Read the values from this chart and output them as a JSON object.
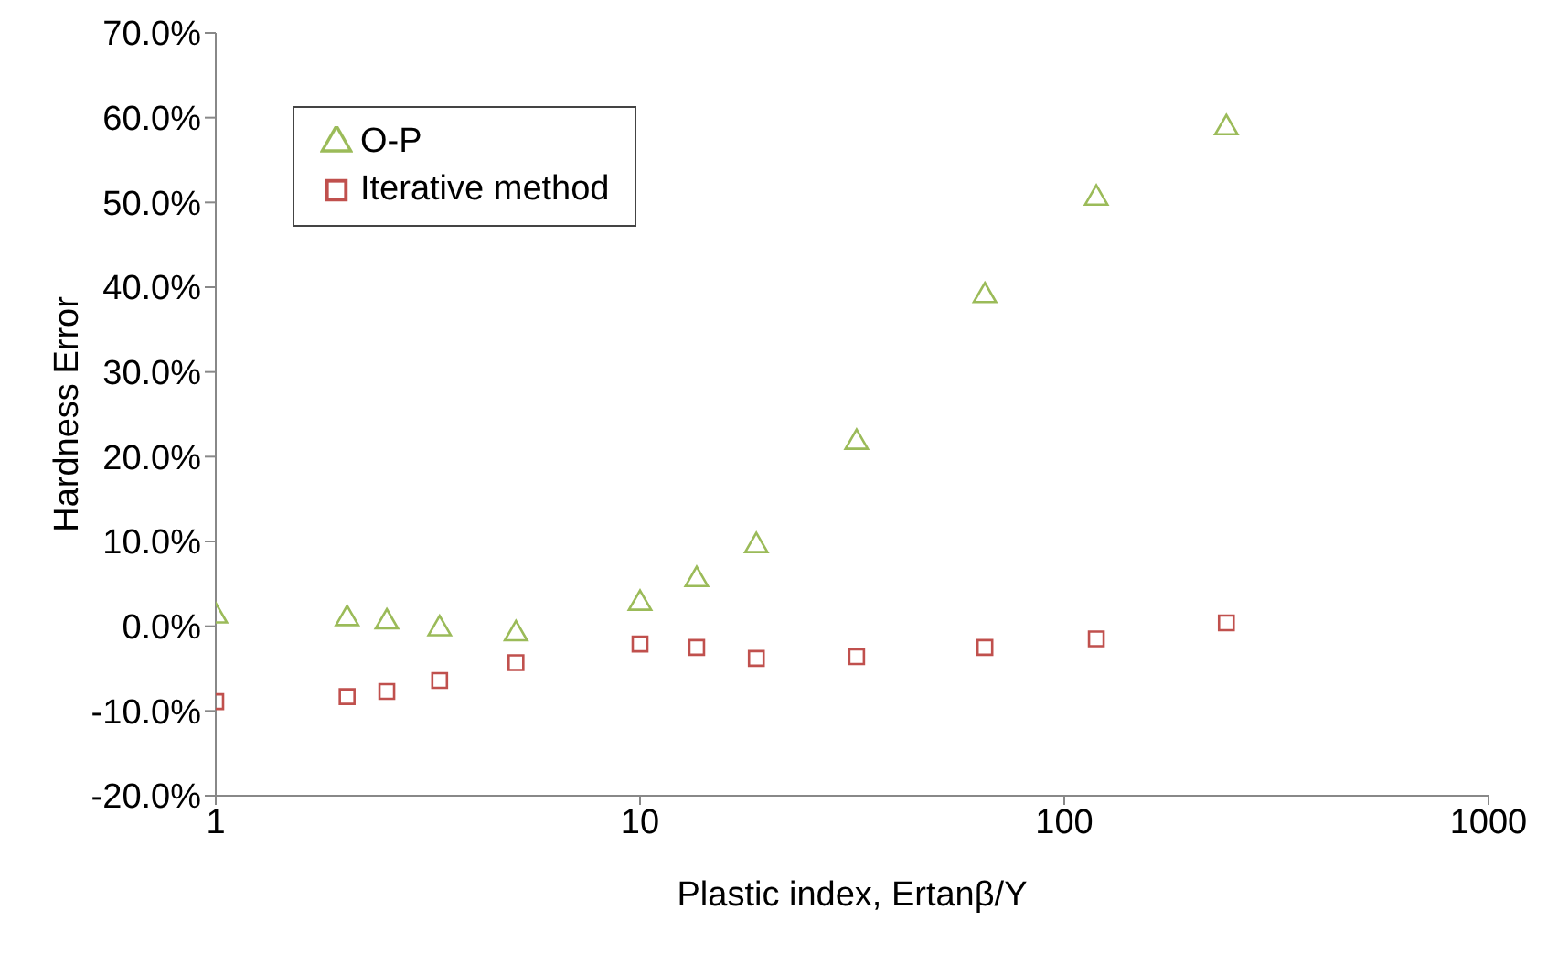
{
  "chart_data": {
    "type": "scatter",
    "xlabel": "Plastic index, Ertanβ/Y",
    "ylabel": "Hardness Error",
    "log": "x",
    "xlim": [
      1,
      1000
    ],
    "xticks": [
      1,
      10,
      100,
      1000
    ],
    "ylim": [
      -20,
      70
    ],
    "yticks": [
      {
        "value": -20,
        "label": "-20.0%"
      },
      {
        "value": -10,
        "label": "-10.0%"
      },
      {
        "value": 0,
        "label": "0.0%"
      },
      {
        "value": 10,
        "label": "10.0%"
      },
      {
        "value": 20,
        "label": "20.0%"
      },
      {
        "value": 30,
        "label": "30.0%"
      },
      {
        "value": 40,
        "label": "40.0%"
      },
      {
        "value": 50,
        "label": "50.0%"
      },
      {
        "value": 60,
        "label": "60.0%"
      },
      {
        "value": 70,
        "label": "70.0%"
      }
    ],
    "grid": false,
    "legend": "top left",
    "x": [
      1,
      2.04,
      2.53,
      3.37,
      5.1,
      10,
      13.6,
      18.8,
      32.4,
      65,
      119,
      241
    ],
    "series": [
      {
        "name": "O-P",
        "color": "#9bbb59",
        "marker": "triangle",
        "values": [
          1.2,
          0.9,
          0.5,
          -0.3,
          -0.9,
          2.7,
          5.5,
          9.5,
          21.7,
          39,
          50.5,
          58.8
        ]
      },
      {
        "name": "Iterative method",
        "color": "#c0504d",
        "marker": "square",
        "values": [
          -8.9,
          -8.3,
          -7.7,
          -6.4,
          -4.3,
          -2.1,
          -2.5,
          -3.8,
          -3.6,
          -2.5,
          -1.5,
          0.4
        ]
      }
    ]
  }
}
